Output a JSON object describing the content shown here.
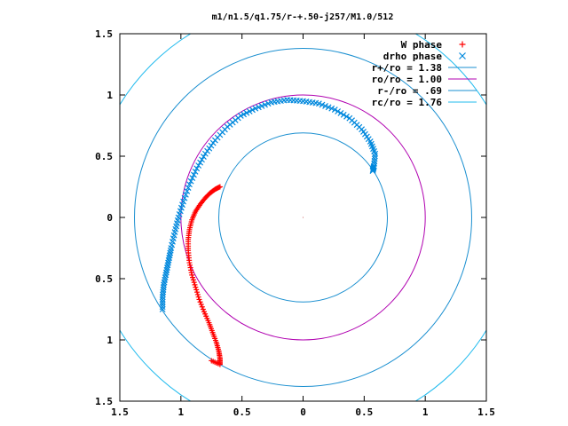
{
  "chart_data": {
    "type": "scatter",
    "title": "m1/n1.5/q1.75/r-+.50-j257/M1.0/512",
    "xlim": [
      -1.5,
      1.5
    ],
    "ylim": [
      -1.5,
      1.5
    ],
    "x_ticks": [
      {
        "v": -1.5,
        "label": "1.5"
      },
      {
        "v": -1.0,
        "label": "1"
      },
      {
        "v": -0.5,
        "label": "0.5"
      },
      {
        "v": 0.0,
        "label": "0"
      },
      {
        "v": 0.5,
        "label": "0.5"
      },
      {
        "v": 1.0,
        "label": "1"
      },
      {
        "v": 1.5,
        "label": "1.5"
      }
    ],
    "y_ticks": [
      {
        "v": 1.5,
        "label": "1.5"
      },
      {
        "v": 1.0,
        "label": "1"
      },
      {
        "v": 0.5,
        "label": "0.5"
      },
      {
        "v": 0.0,
        "label": "0"
      },
      {
        "v": -0.5,
        "label": "0.5"
      },
      {
        "v": -1.0,
        "label": "1"
      },
      {
        "v": -1.5,
        "label": "1.5"
      }
    ],
    "grid": false,
    "legend_position": "top-right",
    "series": [
      {
        "name": "W phase",
        "kind": "points",
        "marker": "plus",
        "color": "#ff0000",
        "points": [
          [
            -0.68,
            0.25
          ],
          [
            -0.72,
            0.23
          ],
          [
            -0.76,
            0.2
          ],
          [
            -0.8,
            0.16
          ],
          [
            -0.84,
            0.11
          ],
          [
            -0.88,
            0.05
          ],
          [
            -0.91,
            -0.02
          ],
          [
            -0.93,
            -0.1
          ],
          [
            -0.94,
            -0.18
          ],
          [
            -0.94,
            -0.27
          ],
          [
            -0.93,
            -0.37
          ],
          [
            -0.91,
            -0.47
          ],
          [
            -0.88,
            -0.57
          ],
          [
            -0.85,
            -0.67
          ],
          [
            -0.81,
            -0.77
          ],
          [
            -0.77,
            -0.86
          ],
          [
            -0.74,
            -0.94
          ],
          [
            -0.71,
            -1.02
          ],
          [
            -0.69,
            -1.09
          ],
          [
            -0.68,
            -1.15
          ],
          [
            -0.68,
            -1.2
          ],
          [
            -0.75,
            -1.17
          ]
        ]
      },
      {
        "name": "drho phase",
        "kind": "points",
        "marker": "cross",
        "color": "#0088dd",
        "points": [
          [
            -1.15,
            -0.75
          ],
          [
            -1.15,
            -0.65
          ],
          [
            -1.14,
            -0.55
          ],
          [
            -1.12,
            -0.45
          ],
          [
            -1.1,
            -0.35
          ],
          [
            -1.08,
            -0.25
          ],
          [
            -1.05,
            -0.12
          ],
          [
            -1.02,
            0.0
          ],
          [
            -0.98,
            0.13
          ],
          [
            -0.93,
            0.27
          ],
          [
            -0.87,
            0.4
          ],
          [
            -0.8,
            0.52
          ],
          [
            -0.72,
            0.63
          ],
          [
            -0.62,
            0.74
          ],
          [
            -0.51,
            0.83
          ],
          [
            -0.39,
            0.89
          ],
          [
            -0.26,
            0.94
          ],
          [
            -0.13,
            0.96
          ],
          [
            0.0,
            0.95
          ],
          [
            0.13,
            0.93
          ],
          [
            0.26,
            0.88
          ],
          [
            0.38,
            0.81
          ],
          [
            0.48,
            0.72
          ],
          [
            0.55,
            0.62
          ],
          [
            0.59,
            0.52
          ],
          [
            0.58,
            0.42
          ],
          [
            0.57,
            0.38
          ]
        ]
      },
      {
        "name": "r+/ro = 1.38",
        "kind": "circle",
        "radius": 1.38,
        "color": "#1a8fd0"
      },
      {
        "name": "ro/ro = 1.00",
        "kind": "circle",
        "radius": 1.0,
        "color": "#b000b0"
      },
      {
        "name": "r-/ro = .69",
        "kind": "circle",
        "radius": 0.69,
        "color": "#1a8fd0"
      },
      {
        "name": "rc/ro = 1.76",
        "kind": "circle",
        "radius": 1.76,
        "color": "#22bbee"
      }
    ]
  }
}
